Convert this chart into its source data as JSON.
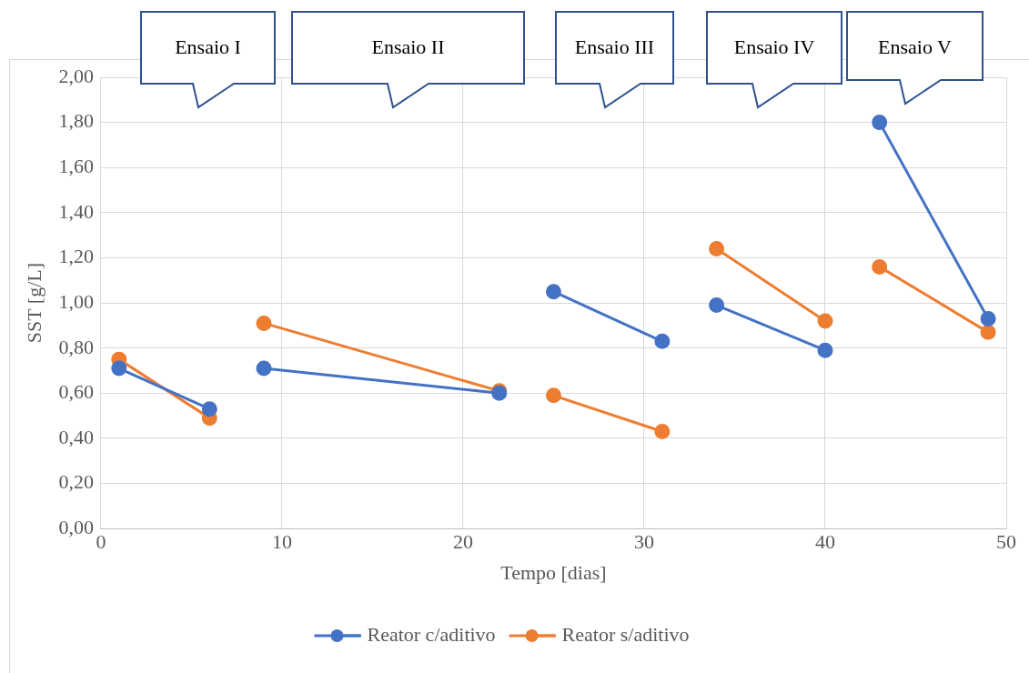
{
  "chart_data": {
    "type": "line",
    "xlabel": "Tempo [dias]",
    "ylabel": "SST [g/L]",
    "xlim": [
      0,
      50
    ],
    "xticks": [
      0,
      10,
      20,
      30,
      40,
      50
    ],
    "ylim": [
      0,
      2
    ],
    "yticks": [
      {
        "value": 0,
        "label": "0,00"
      },
      {
        "value": 0.2,
        "label": "0,20"
      },
      {
        "value": 0.4,
        "label": "0,40"
      },
      {
        "value": 0.6,
        "label": "0,60"
      },
      {
        "value": 0.8,
        "label": "0,80"
      },
      {
        "value": 1,
        "label": "1,00"
      },
      {
        "value": 1.2,
        "label": "1,20"
      },
      {
        "value": 1.4,
        "label": "1,40"
      },
      {
        "value": 1.6,
        "label": "1,60"
      },
      {
        "value": 1.8,
        "label": "1,80"
      },
      {
        "value": 2,
        "label": "2,00"
      }
    ],
    "series": [
      {
        "name": "Reator c/aditivo",
        "color": "#4472c4",
        "x": [
          1,
          6
        ],
        "values": [
          0.71,
          0.53
        ]
      },
      {
        "color": "#4472c4",
        "x": [
          9,
          22
        ],
        "values": [
          0.71,
          0.6
        ]
      },
      {
        "color": "#4472c4",
        "x": [
          25,
          31
        ],
        "values": [
          1.05,
          0.83
        ]
      },
      {
        "color": "#4472c4",
        "x": [
          34,
          40
        ],
        "values": [
          0.99,
          0.79
        ]
      },
      {
        "color": "#4472c4",
        "x": [
          43,
          49
        ],
        "values": [
          1.8,
          0.93
        ]
      },
      {
        "name": "Reator s/aditivo",
        "color": "#ed7d31",
        "x": [
          1,
          6
        ],
        "values": [
          0.75,
          0.49
        ]
      },
      {
        "color": "#ed7d31",
        "x": [
          9,
          22
        ],
        "values": [
          0.91,
          0.61
        ]
      },
      {
        "color": "#ed7d31",
        "x": [
          25,
          31
        ],
        "values": [
          0.59,
          0.43
        ]
      },
      {
        "color": "#ed7d31",
        "x": [
          34,
          40
        ],
        "values": [
          1.24,
          0.92
        ]
      },
      {
        "color": "#ed7d31",
        "x": [
          43,
          49
        ],
        "values": [
          1.16,
          0.87
        ]
      }
    ],
    "annotations": [
      "Ensaio I",
      "Ensaio II",
      "Ensaio III",
      "Ensaio IV",
      "Ensaio V"
    ],
    "grid": true,
    "legend": "bottom",
    "marker": "circle",
    "line_style": "solid"
  }
}
